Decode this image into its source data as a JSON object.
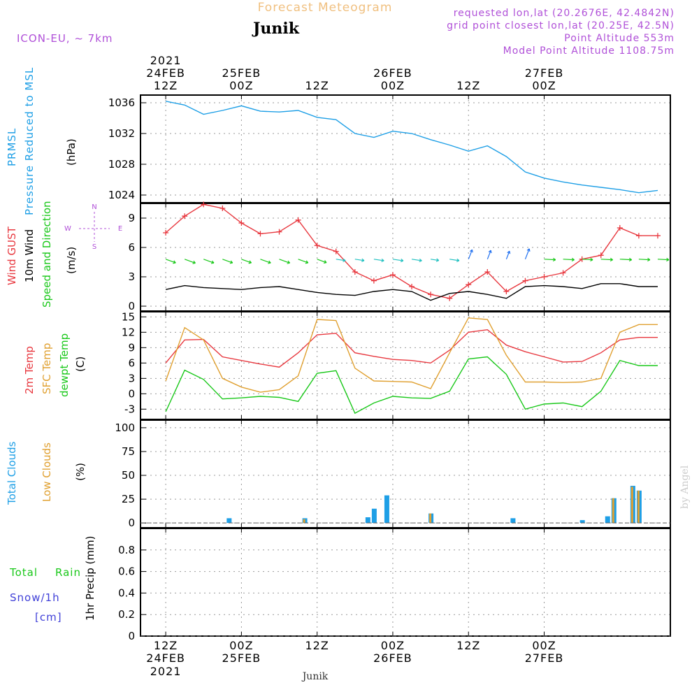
{
  "header": {
    "title_top": "Forecast Meteogram",
    "location": "Junik",
    "model": "ICON-EU, ~ 7km",
    "requested": "requested lon,lat (20.2676E, 42.4842N)",
    "grid_point": "grid point closest lon,lat (20.25E, 42.5N)",
    "point_altitude": "Point Altitude 553m",
    "model_altitude": "Model Point Altitude 1108.75m",
    "footer_location": "Junik",
    "credit": "by Angel"
  },
  "colors": {
    "pressure": "#1e9fe6",
    "gust": "#e8383f",
    "wind": "#000000",
    "temp2m": "#e8383f",
    "sfctemp": "#e0a030",
    "dewpt": "#19c819",
    "total_clouds": "#1e9fe6",
    "low_clouds": "#e0a030",
    "rain": "#19c819",
    "snow": "#4040d8",
    "header_purple": "#b050d8",
    "header_orange": "#f0c080"
  },
  "time_axis": {
    "top_labels": [
      {
        "line1": "2021",
        "line2": "24FEB",
        "line3": "12Z"
      },
      {
        "line1": "",
        "line2": "25FEB",
        "line3": "00Z"
      },
      {
        "line1": "",
        "line2": "",
        "line3": "12Z"
      },
      {
        "line1": "",
        "line2": "26FEB",
        "line3": "00Z"
      },
      {
        "line1": "",
        "line2": "",
        "line3": "12Z"
      },
      {
        "line1": "",
        "line2": "27FEB",
        "line3": "00Z"
      }
    ],
    "bottom_labels": [
      {
        "line1": "12Z",
        "line2": "24FEB",
        "line3": "2021"
      },
      {
        "line1": "00Z",
        "line2": "25FEB",
        "line3": ""
      },
      {
        "line1": "12Z",
        "line2": "",
        "line3": ""
      },
      {
        "line1": "00Z",
        "line2": "26FEB",
        "line3": ""
      },
      {
        "line1": "12Z",
        "line2": "",
        "line3": ""
      },
      {
        "line1": "00Z",
        "line2": "27FEB",
        "line3": ""
      }
    ]
  },
  "panel_labels": {
    "pressure": {
      "l1": "PRMSL",
      "l2": "Pressure Reduced to MSL",
      "unit": "(hPa)"
    },
    "wind": {
      "l1": "Wind GUST",
      "l2": "10m Wind",
      "l3": "Speed and Direction",
      "unit": "(m/s)",
      "compass_ns": "N",
      "compass_s": "S",
      "compass_w": "W",
      "compass_e": "E"
    },
    "temp": {
      "l1": "2m Temp",
      "l2": "SFC Temp",
      "l3": "dewpt Temp",
      "unit": "(C)"
    },
    "clouds": {
      "l1": "Total Clouds",
      "l2": "Low Clouds",
      "unit": "(%)"
    },
    "precip": {
      "l1": "Total",
      "l1b": "Rain",
      "l2": "Snow/1h",
      "l3": "[cm]",
      "l4": "1hr Precip (mm)"
    }
  },
  "chart_data": [
    {
      "type": "line",
      "title": "PRMSL Pressure Reduced to MSL",
      "ylabel": "(hPa)",
      "ylim": [
        1023,
        1037
      ],
      "yticks": [
        1024,
        1028,
        1032,
        1036
      ],
      "grid": true,
      "x_hours": [
        0,
        3,
        6,
        9,
        12,
        15,
        18,
        21,
        24,
        27,
        30,
        33,
        36,
        39,
        42,
        45,
        48,
        51,
        54,
        57,
        60,
        63,
        66,
        69,
        72,
        75,
        78
      ],
      "series": [
        {
          "name": "PRMSL",
          "values": [
            1036.2,
            1035.7,
            1034.5,
            1035.0,
            1035.6,
            1034.9,
            1034.8,
            1035.0,
            1034.1,
            1033.8,
            1032.0,
            1031.5,
            1032.3,
            1032.0,
            1031.2,
            1030.5,
            1029.7,
            1030.4,
            1029.0,
            1027.0,
            1026.2,
            1025.7,
            1025.3,
            1025.0,
            1024.7,
            1024.3,
            1024.6
          ]
        }
      ]
    },
    {
      "type": "line",
      "title": "Wind GUST / 10m Wind Speed and Direction",
      "ylabel": "(m/s)",
      "ylim": [
        -0.5,
        10.5
      ],
      "yticks": [
        0,
        3,
        6,
        9
      ],
      "grid": true,
      "x_hours": [
        0,
        3,
        6,
        9,
        12,
        15,
        18,
        21,
        24,
        27,
        30,
        33,
        36,
        39,
        42,
        45,
        48,
        51,
        54,
        57,
        60,
        63,
        66,
        69,
        72,
        75,
        78
      ],
      "series": [
        {
          "name": "Wind GUST",
          "values": [
            7.5,
            9.2,
            10.4,
            10.0,
            8.5,
            7.4,
            7.6,
            8.8,
            6.2,
            5.6,
            3.5,
            2.6,
            3.2,
            2.0,
            1.2,
            0.8,
            2.2,
            3.5,
            1.5,
            2.6,
            3.0,
            3.4,
            4.8,
            5.2,
            8.0,
            7.2,
            7.2
          ]
        },
        {
          "name": "10m Wind",
          "values": [
            1.7,
            2.1,
            1.9,
            1.8,
            1.7,
            1.9,
            2.0,
            1.7,
            1.4,
            1.2,
            1.1,
            1.5,
            1.7,
            1.5,
            0.6,
            1.3,
            1.5,
            1.2,
            0.8,
            2.0,
            2.1,
            2.0,
            1.8,
            2.3,
            2.3,
            2.0,
            2.0
          ]
        }
      ]
    },
    {
      "type": "line",
      "title": "2m Temp / SFC Temp / dewpt Temp",
      "ylabel": "(C)",
      "ylim": [
        -5,
        16
      ],
      "yticks": [
        -3,
        0,
        3,
        6,
        9,
        12,
        15
      ],
      "grid": true,
      "x_hours": [
        0,
        3,
        6,
        9,
        12,
        15,
        18,
        21,
        24,
        27,
        30,
        33,
        36,
        39,
        42,
        45,
        48,
        51,
        54,
        57,
        60,
        63,
        66,
        69,
        72,
        75,
        78
      ],
      "series": [
        {
          "name": "2m Temp",
          "values": [
            6.0,
            10.5,
            10.6,
            7.2,
            6.5,
            5.8,
            5.2,
            8.0,
            11.5,
            11.8,
            8.0,
            7.3,
            6.7,
            6.5,
            6.0,
            8.5,
            12.0,
            12.5,
            9.5,
            8.2,
            7.2,
            6.2,
            6.3,
            8.0,
            10.5,
            11.0,
            11.0
          ]
        },
        {
          "name": "SFC Temp",
          "values": [
            2.5,
            12.9,
            10.5,
            3.0,
            1.3,
            0.3,
            0.8,
            3.5,
            14.5,
            14.3,
            5.0,
            2.5,
            2.4,
            2.3,
            1.0,
            8.0,
            14.8,
            14.5,
            7.5,
            2.3,
            2.3,
            2.2,
            2.3,
            3.0,
            12.0,
            13.5,
            13.5
          ]
        },
        {
          "name": "dewpt Temp",
          "values": [
            -3.5,
            4.6,
            2.8,
            -1.0,
            -0.8,
            -0.5,
            -0.7,
            -1.5,
            4.0,
            4.5,
            -3.8,
            -1.8,
            -0.5,
            -0.8,
            -0.9,
            0.5,
            6.8,
            7.2,
            3.8,
            -3.0,
            -2.0,
            -1.8,
            -2.5,
            0.5,
            6.5,
            5.5,
            5.5
          ]
        }
      ]
    },
    {
      "type": "bar",
      "title": "Total Clouds / Low Clouds",
      "ylabel": "(%)",
      "ylim": [
        -5,
        108
      ],
      "yticks": [
        0,
        25,
        50,
        75,
        100
      ],
      "grid": true,
      "x_hours": [
        10,
        22,
        32,
        33,
        35,
        42,
        55,
        66,
        70,
        71,
        74,
        75,
        76
      ],
      "series": [
        {
          "name": "Total Clouds",
          "values": [
            5,
            5,
            6,
            15,
            29,
            10,
            5,
            3,
            7,
            26,
            39,
            34,
            0
          ]
        },
        {
          "name": "Low Clouds",
          "values": [
            0,
            4,
            0,
            0,
            0,
            10,
            0,
            0,
            0,
            26,
            38,
            34,
            0
          ]
        }
      ]
    },
    {
      "type": "bar",
      "title": "1hr Precip",
      "ylabel": "1hr Precip (mm)",
      "ylim": [
        0,
        1
      ],
      "yticks": [
        0,
        0.2,
        0.4,
        0.6,
        0.8
      ],
      "grid": true,
      "x_hours": [],
      "series": [
        {
          "name": "Total Rain",
          "values": []
        },
        {
          "name": "Snow/1h",
          "values": []
        }
      ]
    }
  ]
}
